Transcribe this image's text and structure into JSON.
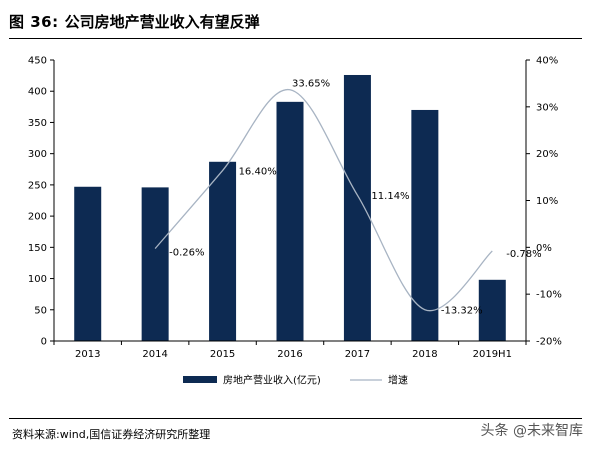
{
  "figure": {
    "number": "图 36:",
    "title": "公司房地产营业收入有望反弹"
  },
  "source": "资料来源:wind,国信证券经济研究所整理",
  "watermark": "头条 @未来智库",
  "colors": {
    "bar": "#0d2a52",
    "line": "#a8b4c3",
    "axis": "#000000"
  },
  "chart_data": {
    "type": "bar",
    "categories": [
      "2013",
      "2014",
      "2015",
      "2016",
      "2017",
      "2018",
      "2019H1"
    ],
    "series": [
      {
        "name": "房地产营业收入(亿元)",
        "type": "bar",
        "axis": "left",
        "values": [
          247,
          246,
          287,
          383,
          426,
          370,
          98
        ]
      },
      {
        "name": "增速",
        "type": "line",
        "axis": "right",
        "values": [
          null,
          -0.26,
          16.4,
          33.65,
          11.14,
          -13.32,
          -0.78
        ],
        "labels": [
          null,
          "-0.26%",
          "16.40%",
          "33.65%",
          "11.14%",
          "-13.32%",
          "-0.78%"
        ]
      }
    ],
    "y_left": {
      "lim": [
        0,
        450
      ],
      "ticks": [
        "0",
        "50",
        "100",
        "150",
        "200",
        "250",
        "300",
        "350",
        "400",
        "450"
      ]
    },
    "y_right": {
      "lim": [
        -20,
        40
      ],
      "ticks": [
        "-20%",
        "-10%",
        "0%",
        "10%",
        "20%",
        "30%",
        "40%"
      ]
    },
    "legend_position": "bottom",
    "grid": false
  }
}
